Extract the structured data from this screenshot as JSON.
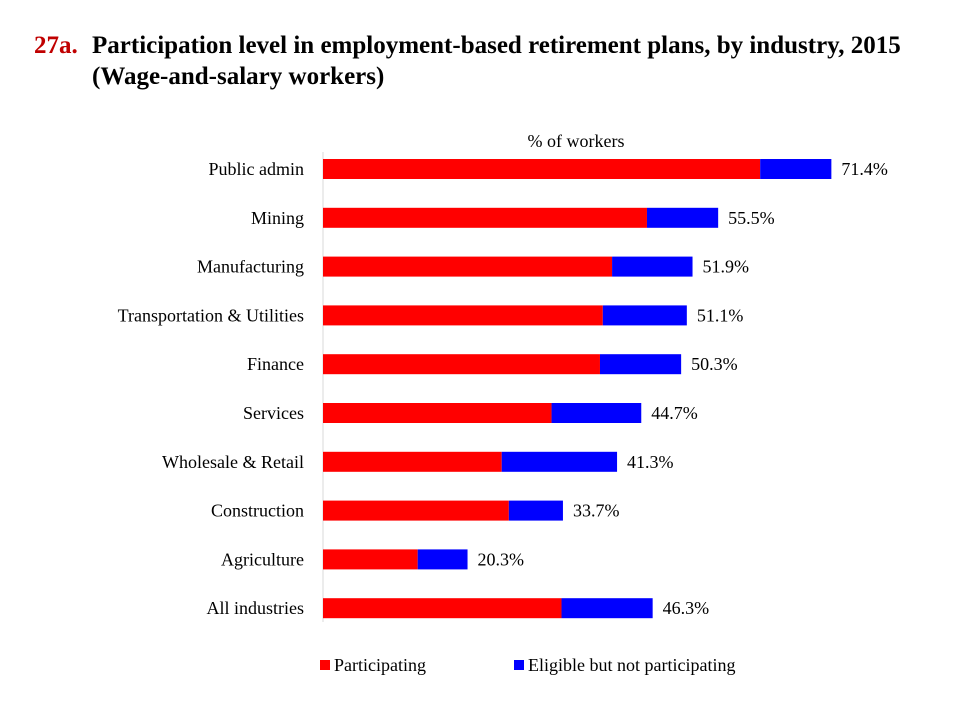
{
  "header": {
    "number": "27a.",
    "title": "Participation level in employment-based retirement plans, by industry, 2015",
    "subtitle": "(Wage-and-salary workers)"
  },
  "chart_data": {
    "type": "bar",
    "orientation": "horizontal",
    "stacked": true,
    "axis_label": "% of workers",
    "categories": [
      "Public admin",
      "Mining",
      "Manufacturing",
      "Transportation & Utilities",
      "Finance",
      "Services",
      "Wholesale & Retail",
      "Construction",
      "Agriculture",
      "All industries"
    ],
    "series": [
      {
        "name": "Participating",
        "color": "#ff0000",
        "values": [
          61.4,
          45.5,
          40.6,
          39.3,
          38.9,
          32.1,
          25.1,
          26.1,
          13.3,
          33.5
        ]
      },
      {
        "name": "Eligible but not participating",
        "color": "#0000ff",
        "values": [
          10.0,
          10.0,
          11.3,
          11.8,
          11.4,
          12.6,
          16.2,
          7.6,
          7.0,
          12.8
        ]
      }
    ],
    "totals_labels": [
      "71.4%",
      "55.5%",
      "51.9%",
      "51.1%",
      "50.3%",
      "44.7%",
      "41.3%",
      "33.7%",
      "20.3%",
      "46.3%"
    ],
    "totals": [
      71.4,
      55.5,
      51.9,
      51.1,
      50.3,
      44.7,
      41.3,
      33.7,
      20.3,
      46.3
    ],
    "xlim": [
      0,
      100
    ],
    "grid": false,
    "legend_position": "bottom"
  }
}
